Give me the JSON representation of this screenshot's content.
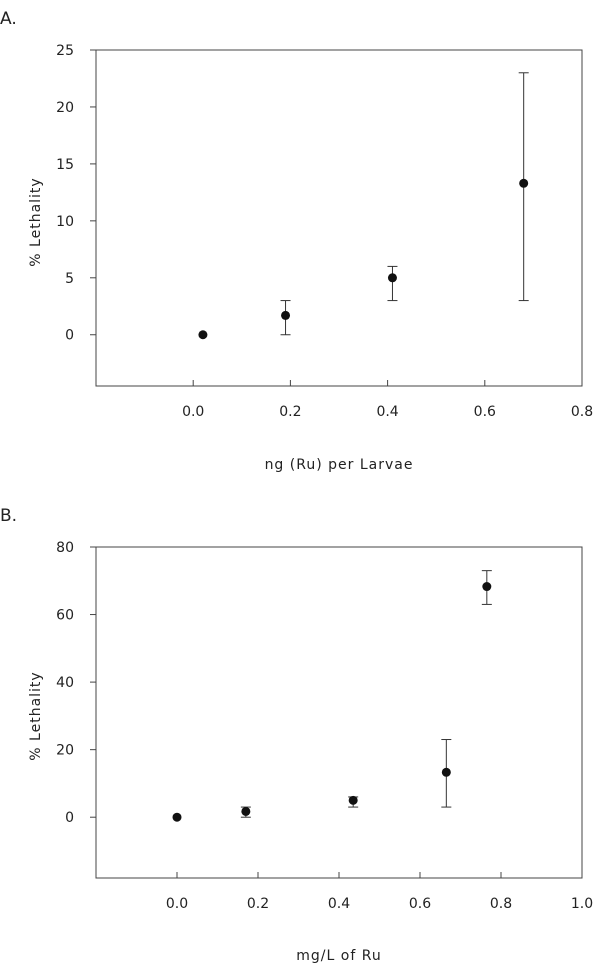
{
  "chart_data": [
    {
      "panel_label": "A.",
      "type": "scatter",
      "xlabel": "ng (Ru) per Larvae",
      "ylabel": "% Lethality",
      "xlim": [
        -0.2,
        0.8
      ],
      "ylim": [
        -4.5,
        25
      ],
      "x_ticks": [
        0.0,
        0.2,
        0.4,
        0.6,
        0.8
      ],
      "x_tick_labels": [
        "0.0",
        "0.2",
        "0.4",
        "0.6",
        "0.8"
      ],
      "y_ticks": [
        0,
        5,
        10,
        15,
        20,
        25
      ],
      "y_tick_labels": [
        "0",
        "5",
        "10",
        "15",
        "20",
        "25"
      ],
      "grid": false,
      "series": [
        {
          "x": [
            0.02,
            0.19,
            0.41,
            0.68
          ],
          "y": [
            0,
            1.7,
            5.0,
            13.3
          ],
          "err_low": [
            0,
            0,
            3,
            3
          ],
          "err_high": [
            0,
            3,
            6,
            23
          ]
        }
      ]
    },
    {
      "panel_label": "B.",
      "type": "scatter",
      "xlabel": "mg/L of Ru",
      "ylabel": "% Lethality",
      "xlim": [
        -0.2,
        1.0
      ],
      "ylim": [
        -18,
        80
      ],
      "x_ticks": [
        0.0,
        0.2,
        0.4,
        0.6,
        0.8,
        1.0
      ],
      "x_tick_labels": [
        "0.0",
        "0.2",
        "0.4",
        "0.6",
        "0.8",
        "1.0"
      ],
      "y_ticks": [
        0,
        20,
        40,
        60,
        80
      ],
      "y_tick_labels": [
        "0",
        "20",
        "40",
        "60",
        "80"
      ],
      "grid": false,
      "series": [
        {
          "x": [
            0.0,
            0.17,
            0.435,
            0.665,
            0.765
          ],
          "y": [
            0,
            1.7,
            5.0,
            13.3,
            68.3
          ],
          "err_low": [
            0,
            0,
            3,
            3,
            63
          ],
          "err_high": [
            0,
            3,
            6,
            23,
            73
          ]
        }
      ]
    }
  ]
}
